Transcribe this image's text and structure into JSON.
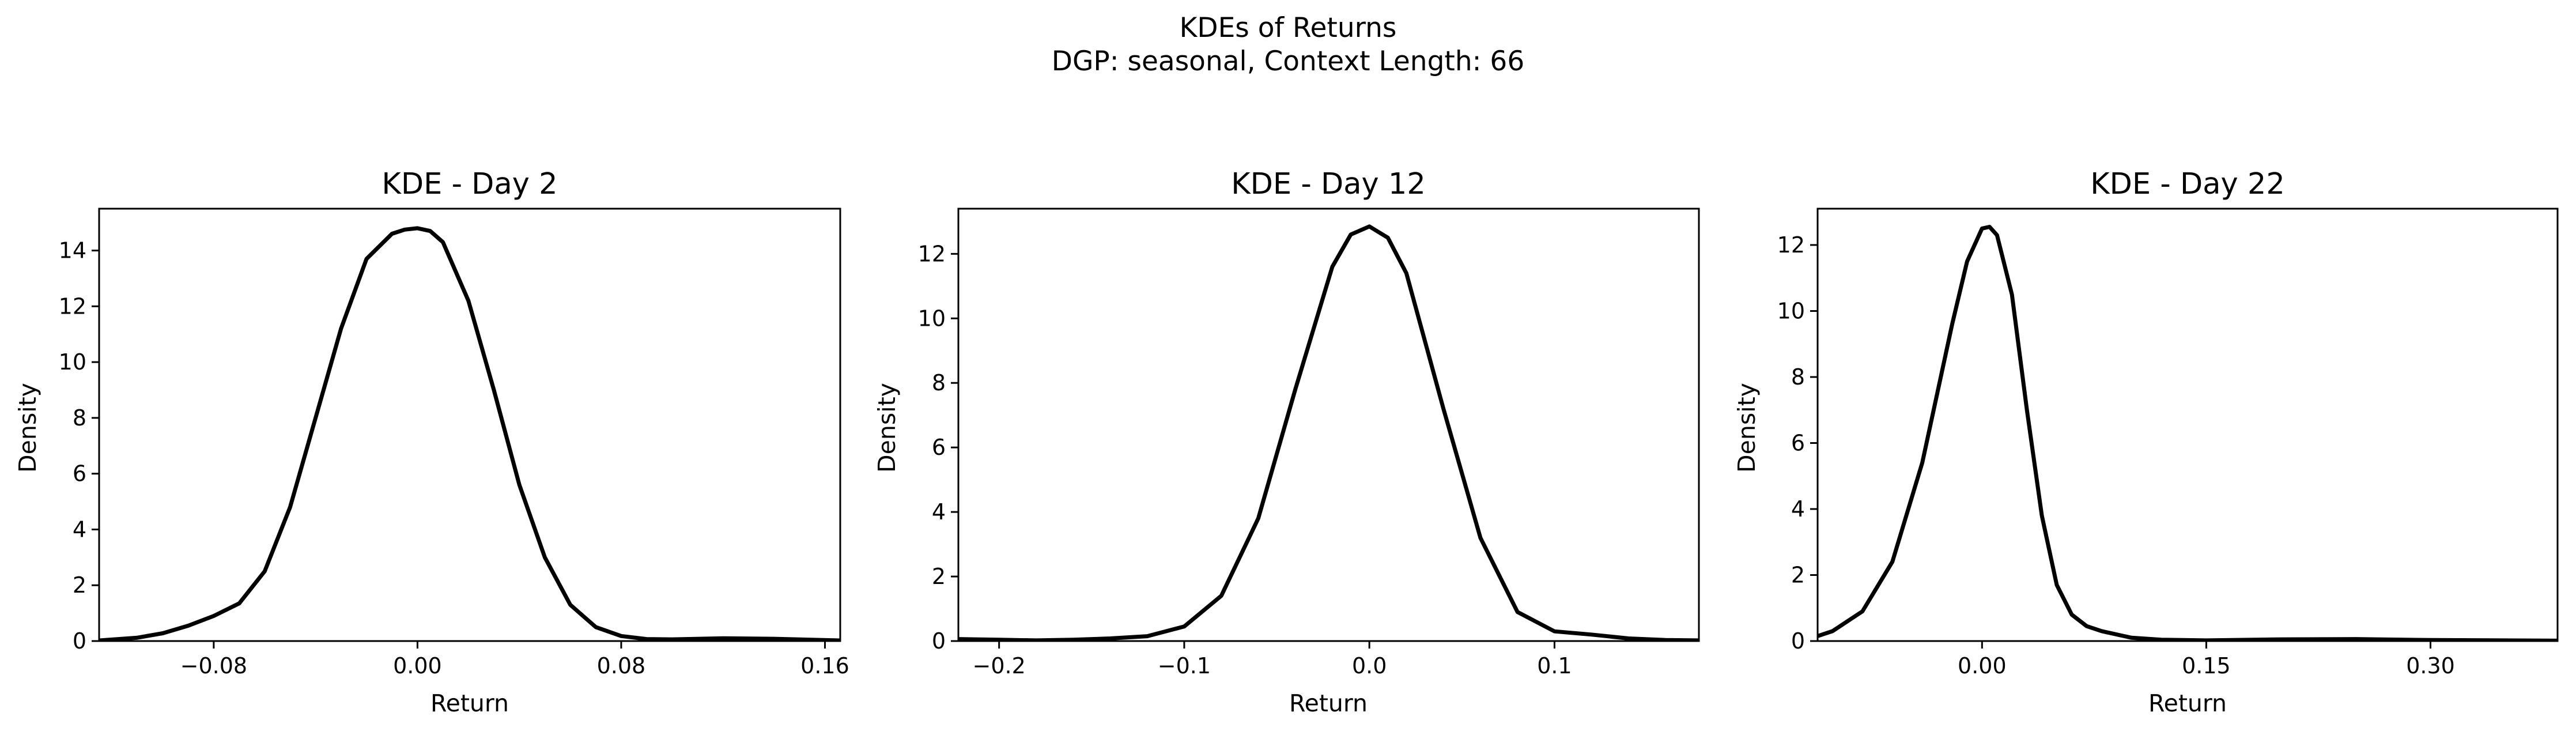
{
  "figure": {
    "title": "KDEs of Returns",
    "subtitle": "DGP: seasonal, Context Length: 66"
  },
  "chart_data": [
    {
      "type": "line",
      "title": "KDE - Day 2",
      "xlabel": "Return",
      "ylabel": "Density",
      "xlim": [
        -0.125,
        0.166
      ],
      "ylim": [
        0,
        15.5
      ],
      "xticks": [
        -0.08,
        0.0,
        0.08,
        0.16
      ],
      "xtick_labels": [
        "−0.08",
        "0.00",
        "0.08",
        "0.16"
      ],
      "yticks": [
        0,
        2,
        4,
        6,
        8,
        10,
        12,
        14
      ],
      "ytick_labels": [
        "0",
        "2",
        "4",
        "6",
        "8",
        "10",
        "12",
        "14"
      ],
      "grid": false,
      "color": "#000000",
      "x": [
        -0.125,
        -0.11,
        -0.1,
        -0.09,
        -0.08,
        -0.07,
        -0.06,
        -0.05,
        -0.04,
        -0.03,
        -0.02,
        -0.01,
        -0.005,
        0.0,
        0.005,
        0.01,
        0.02,
        0.03,
        0.04,
        0.05,
        0.06,
        0.07,
        0.08,
        0.09,
        0.1,
        0.12,
        0.14,
        0.166
      ],
      "y": [
        0.02,
        0.12,
        0.28,
        0.55,
        0.9,
        1.35,
        2.5,
        4.8,
        8.0,
        11.2,
        13.7,
        14.6,
        14.75,
        14.8,
        14.7,
        14.3,
        12.2,
        9.0,
        5.6,
        3.0,
        1.3,
        0.5,
        0.18,
        0.07,
        0.06,
        0.1,
        0.08,
        0.02
      ]
    },
    {
      "type": "line",
      "title": "KDE - Day 12",
      "xlabel": "Return",
      "ylabel": "Density",
      "xlim": [
        -0.222,
        0.178
      ],
      "ylim": [
        0,
        13.4
      ],
      "xticks": [
        -0.2,
        -0.1,
        0.0,
        0.1
      ],
      "xtick_labels": [
        "−0.2",
        "−0.1",
        "0.0",
        "0.1"
      ],
      "yticks": [
        0,
        2,
        4,
        6,
        8,
        10,
        12
      ],
      "ytick_labels": [
        "0",
        "2",
        "4",
        "6",
        "8",
        "10",
        "12"
      ],
      "grid": false,
      "color": "#000000",
      "x": [
        -0.222,
        -0.2,
        -0.18,
        -0.16,
        -0.14,
        -0.12,
        -0.1,
        -0.08,
        -0.06,
        -0.04,
        -0.02,
        -0.01,
        0.0,
        0.01,
        0.02,
        0.04,
        0.06,
        0.08,
        0.1,
        0.12,
        0.14,
        0.16,
        0.178
      ],
      "y": [
        0.06,
        0.04,
        0.02,
        0.04,
        0.08,
        0.15,
        0.45,
        1.4,
        3.8,
        7.8,
        11.6,
        12.6,
        12.85,
        12.5,
        11.4,
        7.2,
        3.2,
        0.9,
        0.3,
        0.2,
        0.08,
        0.03,
        0.02
      ]
    },
    {
      "type": "line",
      "title": "KDE - Day 22",
      "xlabel": "Return",
      "ylabel": "Density",
      "xlim": [
        -0.11,
        0.385
      ],
      "ylim": [
        0,
        13.1
      ],
      "xticks": [
        0.0,
        0.15,
        0.3
      ],
      "xtick_labels": [
        "0.00",
        "0.15",
        "0.30"
      ],
      "yticks": [
        0,
        2,
        4,
        6,
        8,
        10,
        12
      ],
      "ytick_labels": [
        "0",
        "2",
        "4",
        "6",
        "8",
        "10",
        "12"
      ],
      "grid": false,
      "color": "#000000",
      "x": [
        -0.11,
        -0.1,
        -0.08,
        -0.06,
        -0.04,
        -0.02,
        -0.01,
        0.0,
        0.005,
        0.01,
        0.02,
        0.03,
        0.04,
        0.05,
        0.06,
        0.07,
        0.08,
        0.1,
        0.12,
        0.15,
        0.2,
        0.25,
        0.3,
        0.385
      ],
      "y": [
        0.15,
        0.3,
        0.9,
        2.4,
        5.4,
        9.6,
        11.5,
        12.5,
        12.55,
        12.3,
        10.5,
        7.0,
        3.8,
        1.7,
        0.8,
        0.45,
        0.3,
        0.1,
        0.04,
        0.02,
        0.05,
        0.06,
        0.03,
        0.01
      ]
    }
  ]
}
